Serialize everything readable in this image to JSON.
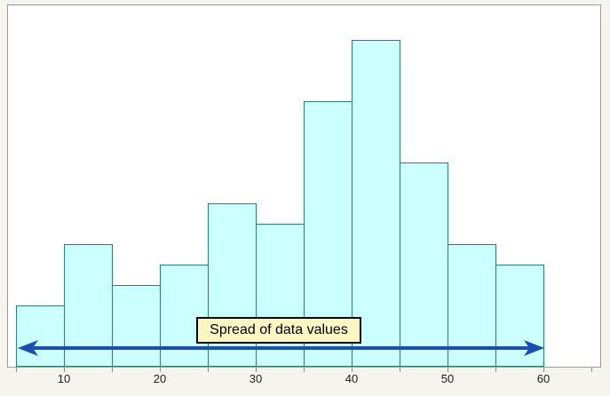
{
  "chart": {
    "colors": {
      "page_bg": "#f5f4ee",
      "plot_bg": "#ffffff",
      "frame": "#9c9c94",
      "bar_fill": "#ccffff",
      "bar_border": "#2e7b80",
      "arrow": "#1d50ae",
      "tick": "#8f8f89",
      "tick_label": "#1c1c1c",
      "annotation_bg": "#fcf6c5",
      "annotation_border": "#000000",
      "annotation_text": "#000000"
    }
  },
  "chart_data": {
    "type": "bar",
    "subtype": "histogram",
    "title": "",
    "xlabel": "",
    "ylabel": "",
    "bin_width": 5,
    "bin_edges": [
      5,
      10,
      15,
      20,
      25,
      30,
      35,
      40,
      45,
      50,
      55,
      60
    ],
    "counts": [
      3,
      6,
      4,
      5,
      8,
      7,
      13,
      16,
      10,
      6,
      5
    ],
    "x_tick_labels": [
      "10",
      "20",
      "30",
      "40",
      "50",
      "60"
    ],
    "x_tick_values": [
      10,
      20,
      30,
      40,
      50,
      60
    ],
    "minor_tick_values": [
      5,
      15,
      25,
      35,
      45,
      55,
      65
    ],
    "xlim": [
      4,
      66
    ],
    "ylim": [
      0,
      17.8
    ],
    "y_axis_visible": false,
    "grid": false,
    "legend": false,
    "annotation": "Spread of data values",
    "annotation_arrow": {
      "from_x": 5.2,
      "to_x": 60,
      "style": "double-headed"
    }
  }
}
